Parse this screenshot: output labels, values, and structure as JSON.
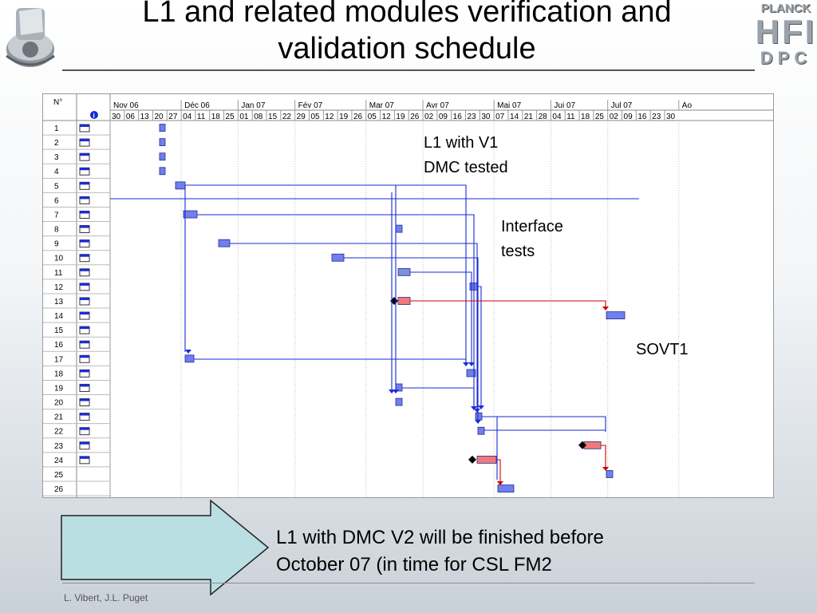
{
  "slide": {
    "title_line1": "L1 and related modules verification and",
    "title_line2": "validation schedule",
    "footer": "L. Vibert, J.L. Puget",
    "bottom_text_line1": "L1 with DMC V2 will be finished before",
    "bottom_text_line2": "October 07 (in time for CSL FM2",
    "logo_right": {
      "line1": "PLANCK",
      "line2": "HFI",
      "line3": "DPC"
    }
  },
  "annotations": {
    "l1_v1_line1": "L1 with V1",
    "l1_v1_line2": "DMC tested",
    "interface_line1": "Interface",
    "interface_line2": "tests",
    "sovt1": "SOVT1"
  },
  "gantt": {
    "id_header": "N°",
    "info_icon": "info-icon",
    "months": [
      "Nov 06",
      "Déc 06",
      "Jan 07",
      "Fév 07",
      "Mar 07",
      "Avr 07",
      "Mai 07",
      "Jui 07",
      "Jul 07",
      "Ao"
    ],
    "weeks": [
      "30",
      "06",
      "13",
      "20",
      "27",
      "04",
      "11",
      "18",
      "25",
      "01",
      "08",
      "15",
      "22",
      "29",
      "05",
      "12",
      "19",
      "26",
      "05",
      "12",
      "19",
      "26",
      "02",
      "09",
      "16",
      "23",
      "30",
      "07",
      "14",
      "21",
      "28",
      "04",
      "11",
      "18",
      "25",
      "02",
      "09",
      "16",
      "23",
      "30"
    ],
    "rows": [
      "1",
      "2",
      "3",
      "4",
      "5",
      "6",
      "7",
      "8",
      "9",
      "10",
      "11",
      "12",
      "13",
      "14",
      "15",
      "16",
      "17",
      "18",
      "19",
      "20",
      "21",
      "22",
      "23",
      "24",
      "25",
      "26"
    ],
    "row_icon": "task-table-icon",
    "colors": {
      "task_blue": "#6f7ff0",
      "task_blue_hatched": "#7c8fe0",
      "task_red": "#f07a7a",
      "link_blue": "#1a2bd6",
      "link_red": "#d00000",
      "milestone": "#000000"
    }
  }
}
